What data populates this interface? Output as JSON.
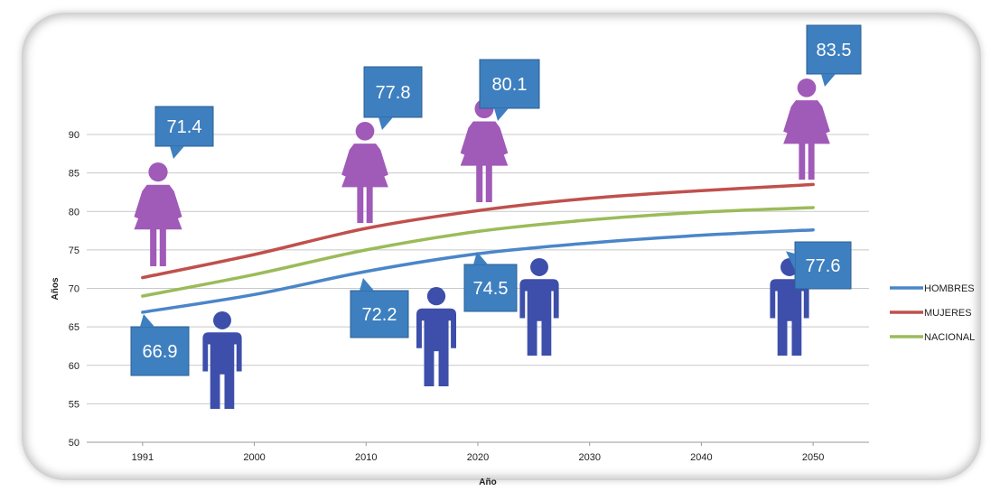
{
  "chart_data": {
    "type": "line",
    "title": "",
    "xlabel": "Año",
    "ylabel": "Años",
    "x_ticks": [
      "1991",
      "2000",
      "2010",
      "2020",
      "2030",
      "2040",
      "2050"
    ],
    "x_range": [
      1991,
      2050
    ],
    "ylim": [
      50,
      90
    ],
    "y_ticks": [
      50,
      55,
      60,
      65,
      70,
      75,
      80,
      85,
      90
    ],
    "grid": "horizontal",
    "legend_position": "right",
    "series": [
      {
        "name": "HOMBRES",
        "color": "#4a86c8",
        "x": [
          1991,
          2000,
          2010,
          2020,
          2030,
          2040,
          2050
        ],
        "values": [
          66.9,
          69.2,
          72.2,
          74.5,
          75.9,
          76.9,
          77.6
        ]
      },
      {
        "name": "MUJERES",
        "color": "#c0504d",
        "x": [
          1991,
          2000,
          2010,
          2020,
          2030,
          2040,
          2050
        ],
        "values": [
          71.4,
          74.4,
          77.8,
          80.1,
          81.7,
          82.7,
          83.5
        ]
      },
      {
        "name": "NACIONAL",
        "color": "#9bbb59",
        "x": [
          1991,
          2000,
          2010,
          2020,
          2030,
          2040,
          2050
        ],
        "values": [
          69.0,
          71.8,
          75.0,
          77.4,
          78.9,
          79.9,
          80.5
        ]
      }
    ],
    "annotations": [
      {
        "label": "71.4",
        "series": "MUJERES",
        "x": 1991
      },
      {
        "label": "77.8",
        "series": "MUJERES",
        "x": 2010
      },
      {
        "label": "80.1",
        "series": "MUJERES",
        "x": 2020
      },
      {
        "label": "83.5",
        "series": "MUJERES",
        "x": 2050
      },
      {
        "label": "66.9",
        "series": "HOMBRES",
        "x": 1991
      },
      {
        "label": "72.2",
        "series": "HOMBRES",
        "x": 2010
      },
      {
        "label": "74.5",
        "series": "HOMBRES",
        "x": 2020
      },
      {
        "label": "77.6",
        "series": "HOMBRES",
        "x": 2050
      }
    ],
    "icons": {
      "female": "woman-icon",
      "male": "man-icon",
      "female_color": "#a05ab8",
      "male_color": "#3d4faa"
    },
    "callout_color": "#3e7fbf"
  }
}
